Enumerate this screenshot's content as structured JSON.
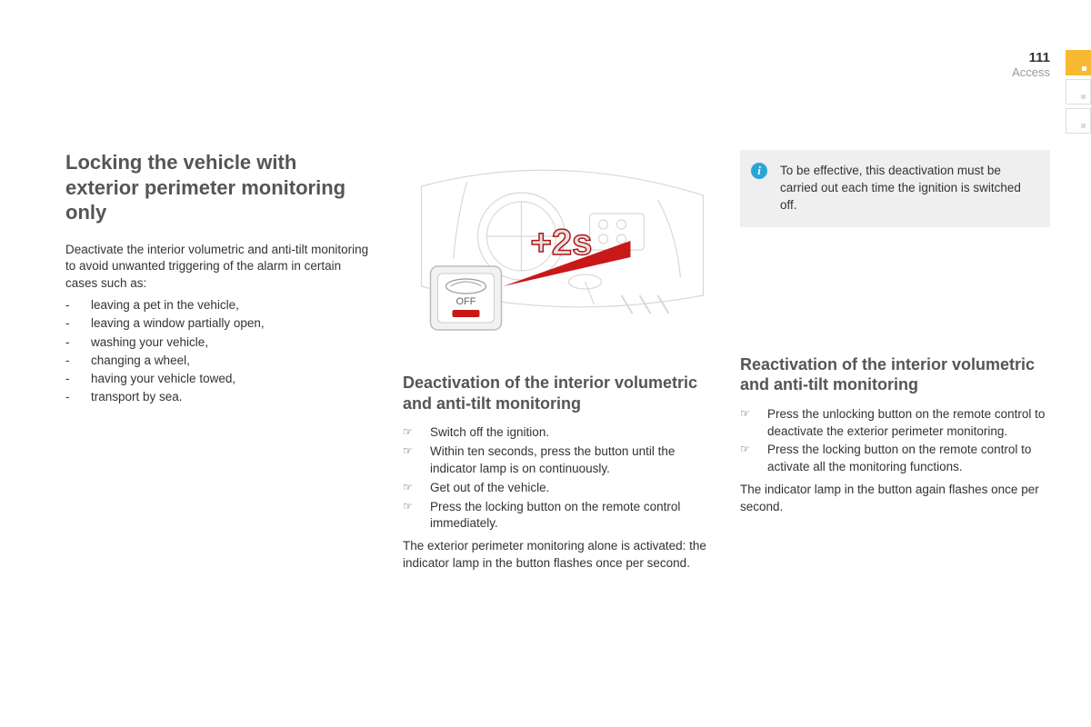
{
  "header": {
    "page_number": "111",
    "section_label": "Access"
  },
  "tabs": {
    "active_color": "#f8b930",
    "inactive_border": "#dddddd"
  },
  "col1": {
    "title": "Locking the vehicle with exterior perimeter monitoring only",
    "intro": "Deactivate the interior volumetric and anti-tilt monitoring to avoid unwanted triggering of the alarm in certain cases such as:",
    "cases": [
      "leaving a pet in the vehicle,",
      "leaving a window partially open,",
      "washing your vehicle,",
      "changing a wheel,",
      "having your vehicle towed,",
      "transport by sea."
    ]
  },
  "col2": {
    "illustration": {
      "overlay_text": "+2s",
      "overlay_color": "#b01818",
      "button_label": "OFF",
      "wedge_color": "#c81818"
    },
    "title": "Deactivation of the interior volumetric and anti-tilt monitoring",
    "steps": [
      "Switch off the ignition.",
      "Within ten seconds, press the button until the indicator lamp is on continuously.",
      "Get out of the vehicle.",
      "Press the locking button on the remote control immediately."
    ],
    "result": "The exterior perimeter monitoring alone is activated: the indicator lamp in the button flashes once per second."
  },
  "col3": {
    "info_box": "To be effective, this deactivation must be carried out each time the ignition is switched off.",
    "title": "Reactivation of the interior volumetric and anti-tilt monitoring",
    "steps": [
      "Press the unlocking button on the remote control to deactivate the exterior perimeter monitoring.",
      "Press the locking button on the remote control to activate all the monitoring functions."
    ],
    "result": "The indicator lamp in the button again flashes once per second."
  },
  "style": {
    "body_text_color": "#333333",
    "heading_color": "#555555",
    "section_label_color": "#999999",
    "info_bg": "#efefef",
    "info_icon_bg": "#2aa5d8",
    "body_fontsize": 13.5,
    "h1_fontsize": 22,
    "h2_fontsize": 18
  }
}
